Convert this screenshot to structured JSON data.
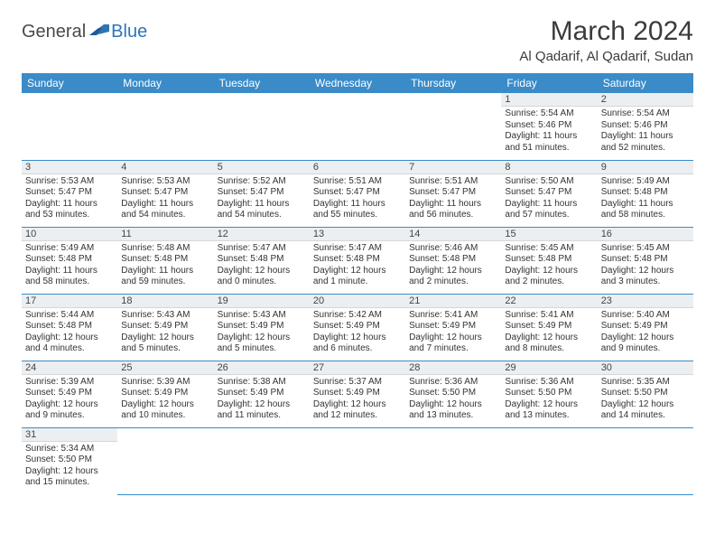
{
  "brand": {
    "general": "General",
    "blue": "Blue"
  },
  "title": "March 2024",
  "location": "Al Qadarif, Al Qadarif, Sudan",
  "colors": {
    "header_bg": "#3b8bc8",
    "header_text": "#ffffff",
    "daynum_bg": "#eceff1",
    "cell_border": "#3b8bc8",
    "logo_blue": "#2e75b6"
  },
  "weekdays": [
    "Sunday",
    "Monday",
    "Tuesday",
    "Wednesday",
    "Thursday",
    "Friday",
    "Saturday"
  ],
  "first_day_index": 5,
  "days": [
    {
      "n": 1,
      "sunrise": "5:54 AM",
      "sunset": "5:46 PM",
      "daylight": "11 hours and 51 minutes."
    },
    {
      "n": 2,
      "sunrise": "5:54 AM",
      "sunset": "5:46 PM",
      "daylight": "11 hours and 52 minutes."
    },
    {
      "n": 3,
      "sunrise": "5:53 AM",
      "sunset": "5:47 PM",
      "daylight": "11 hours and 53 minutes."
    },
    {
      "n": 4,
      "sunrise": "5:53 AM",
      "sunset": "5:47 PM",
      "daylight": "11 hours and 54 minutes."
    },
    {
      "n": 5,
      "sunrise": "5:52 AM",
      "sunset": "5:47 PM",
      "daylight": "11 hours and 54 minutes."
    },
    {
      "n": 6,
      "sunrise": "5:51 AM",
      "sunset": "5:47 PM",
      "daylight": "11 hours and 55 minutes."
    },
    {
      "n": 7,
      "sunrise": "5:51 AM",
      "sunset": "5:47 PM",
      "daylight": "11 hours and 56 minutes."
    },
    {
      "n": 8,
      "sunrise": "5:50 AM",
      "sunset": "5:47 PM",
      "daylight": "11 hours and 57 minutes."
    },
    {
      "n": 9,
      "sunrise": "5:49 AM",
      "sunset": "5:48 PM",
      "daylight": "11 hours and 58 minutes."
    },
    {
      "n": 10,
      "sunrise": "5:49 AM",
      "sunset": "5:48 PM",
      "daylight": "11 hours and 58 minutes."
    },
    {
      "n": 11,
      "sunrise": "5:48 AM",
      "sunset": "5:48 PM",
      "daylight": "11 hours and 59 minutes."
    },
    {
      "n": 12,
      "sunrise": "5:47 AM",
      "sunset": "5:48 PM",
      "daylight": "12 hours and 0 minutes."
    },
    {
      "n": 13,
      "sunrise": "5:47 AM",
      "sunset": "5:48 PM",
      "daylight": "12 hours and 1 minute."
    },
    {
      "n": 14,
      "sunrise": "5:46 AM",
      "sunset": "5:48 PM",
      "daylight": "12 hours and 2 minutes."
    },
    {
      "n": 15,
      "sunrise": "5:45 AM",
      "sunset": "5:48 PM",
      "daylight": "12 hours and 2 minutes."
    },
    {
      "n": 16,
      "sunrise": "5:45 AM",
      "sunset": "5:48 PM",
      "daylight": "12 hours and 3 minutes."
    },
    {
      "n": 17,
      "sunrise": "5:44 AM",
      "sunset": "5:48 PM",
      "daylight": "12 hours and 4 minutes."
    },
    {
      "n": 18,
      "sunrise": "5:43 AM",
      "sunset": "5:49 PM",
      "daylight": "12 hours and 5 minutes."
    },
    {
      "n": 19,
      "sunrise": "5:43 AM",
      "sunset": "5:49 PM",
      "daylight": "12 hours and 5 minutes."
    },
    {
      "n": 20,
      "sunrise": "5:42 AM",
      "sunset": "5:49 PM",
      "daylight": "12 hours and 6 minutes."
    },
    {
      "n": 21,
      "sunrise": "5:41 AM",
      "sunset": "5:49 PM",
      "daylight": "12 hours and 7 minutes."
    },
    {
      "n": 22,
      "sunrise": "5:41 AM",
      "sunset": "5:49 PM",
      "daylight": "12 hours and 8 minutes."
    },
    {
      "n": 23,
      "sunrise": "5:40 AM",
      "sunset": "5:49 PM",
      "daylight": "12 hours and 9 minutes."
    },
    {
      "n": 24,
      "sunrise": "5:39 AM",
      "sunset": "5:49 PM",
      "daylight": "12 hours and 9 minutes."
    },
    {
      "n": 25,
      "sunrise": "5:39 AM",
      "sunset": "5:49 PM",
      "daylight": "12 hours and 10 minutes."
    },
    {
      "n": 26,
      "sunrise": "5:38 AM",
      "sunset": "5:49 PM",
      "daylight": "12 hours and 11 minutes."
    },
    {
      "n": 27,
      "sunrise": "5:37 AM",
      "sunset": "5:49 PM",
      "daylight": "12 hours and 12 minutes."
    },
    {
      "n": 28,
      "sunrise": "5:36 AM",
      "sunset": "5:50 PM",
      "daylight": "12 hours and 13 minutes."
    },
    {
      "n": 29,
      "sunrise": "5:36 AM",
      "sunset": "5:50 PM",
      "daylight": "12 hours and 13 minutes."
    },
    {
      "n": 30,
      "sunrise": "5:35 AM",
      "sunset": "5:50 PM",
      "daylight": "12 hours and 14 minutes."
    },
    {
      "n": 31,
      "sunrise": "5:34 AM",
      "sunset": "5:50 PM",
      "daylight": "12 hours and 15 minutes."
    }
  ],
  "labels": {
    "sunrise": "Sunrise:",
    "sunset": "Sunset:",
    "daylight": "Daylight:"
  }
}
